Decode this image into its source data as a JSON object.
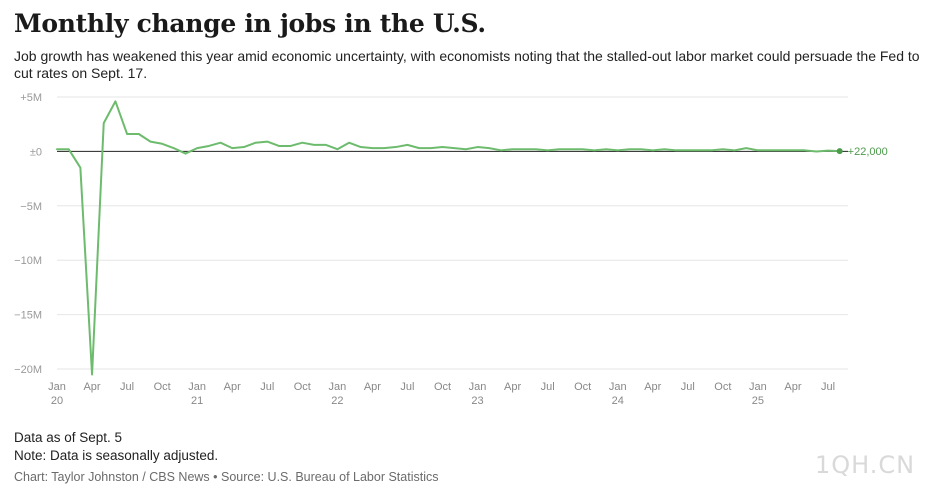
{
  "header": {
    "title": "Monthly change in jobs in the U.S.",
    "subtitle": "Job growth has weakened this year amid economic uncertainty, with economists noting that the stalled-out labor market could persuade the Fed to cut rates on Sept. 17."
  },
  "footer": {
    "as_of": "Data as of Sept. 5",
    "note": "Note: Data is seasonally adjusted.",
    "credit": "Chart: Taylor Johnston / CBS News • Source: U.S. Bureau of Labor Statistics"
  },
  "watermark": "1QH.CN",
  "chart_data": {
    "type": "line",
    "x_start": "2020-01",
    "x_end": "2025-08",
    "ylim": [
      -20,
      5
    ],
    "y_unit": "millions of jobs",
    "y_ticks": [
      {
        "value": 5,
        "label": "+5M"
      },
      {
        "value": 0,
        "label": "±0"
      },
      {
        "value": -5,
        "label": "−5M"
      },
      {
        "value": -10,
        "label": "−10M"
      },
      {
        "value": -15,
        "label": "−15M"
      },
      {
        "value": -20,
        "label": "−20M"
      }
    ],
    "x_ticks": [
      {
        "month": "2020-01",
        "label": "Jan",
        "year": "20"
      },
      {
        "month": "2020-04",
        "label": "Apr"
      },
      {
        "month": "2020-07",
        "label": "Jul"
      },
      {
        "month": "2020-10",
        "label": "Oct"
      },
      {
        "month": "2021-01",
        "label": "Jan",
        "year": "21"
      },
      {
        "month": "2021-04",
        "label": "Apr"
      },
      {
        "month": "2021-07",
        "label": "Jul"
      },
      {
        "month": "2021-10",
        "label": "Oct"
      },
      {
        "month": "2022-01",
        "label": "Jan",
        "year": "22"
      },
      {
        "month": "2022-04",
        "label": "Apr"
      },
      {
        "month": "2022-07",
        "label": "Jul"
      },
      {
        "month": "2022-10",
        "label": "Oct"
      },
      {
        "month": "2023-01",
        "label": "Jan",
        "year": "23"
      },
      {
        "month": "2023-04",
        "label": "Apr"
      },
      {
        "month": "2023-07",
        "label": "Jul"
      },
      {
        "month": "2023-10",
        "label": "Oct"
      },
      {
        "month": "2024-01",
        "label": "Jan",
        "year": "24"
      },
      {
        "month": "2024-04",
        "label": "Apr"
      },
      {
        "month": "2024-07",
        "label": "Jul"
      },
      {
        "month": "2024-10",
        "label": "Oct"
      },
      {
        "month": "2025-01",
        "label": "Jan",
        "year": "25"
      },
      {
        "month": "2025-04",
        "label": "Apr"
      },
      {
        "month": "2025-07",
        "label": "Jul"
      }
    ],
    "grid": true,
    "line_color": "#6dbb6d",
    "zero_line_color": "#222222",
    "end_label": "+22,000",
    "series": [
      {
        "values": [
          0.2,
          0.2,
          -1.5,
          -20.5,
          2.6,
          4.6,
          1.6,
          1.6,
          0.9,
          0.7,
          0.3,
          -0.2,
          0.3,
          0.5,
          0.8,
          0.3,
          0.4,
          0.8,
          0.9,
          0.5,
          0.5,
          0.8,
          0.6,
          0.6,
          0.2,
          0.8,
          0.4,
          0.3,
          0.3,
          0.4,
          0.6,
          0.3,
          0.3,
          0.4,
          0.3,
          0.2,
          0.4,
          0.3,
          0.1,
          0.2,
          0.2,
          0.2,
          0.1,
          0.2,
          0.2,
          0.2,
          0.1,
          0.2,
          0.1,
          0.2,
          0.2,
          0.1,
          0.2,
          0.1,
          0.1,
          0.1,
          0.1,
          0.2,
          0.1,
          0.3,
          0.1,
          0.1,
          0.1,
          0.1,
          0.1,
          -0.01,
          0.07,
          0.022
        ]
      }
    ]
  }
}
